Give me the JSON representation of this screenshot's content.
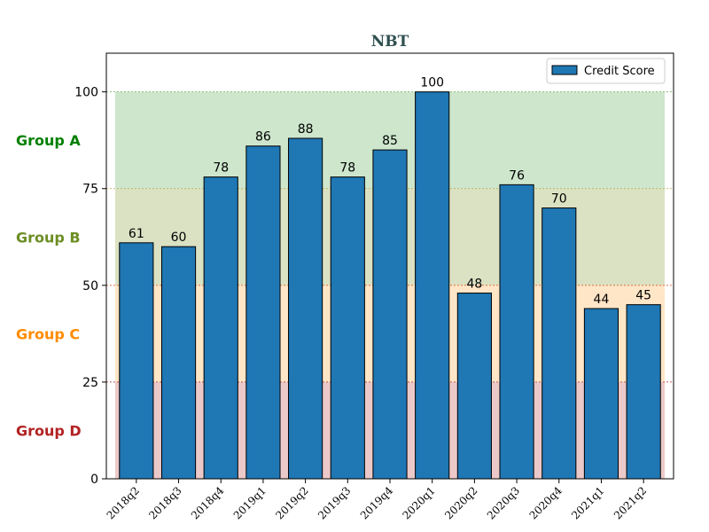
{
  "chart_data": {
    "type": "bar",
    "title": "NBT",
    "title_color": "#2f4f4f",
    "categories": [
      "2018q2",
      "2018q3",
      "2018q4",
      "2019q1",
      "2019q2",
      "2019q3",
      "2019q4",
      "2020q1",
      "2020q2",
      "2020q3",
      "2020q4",
      "2021q1",
      "2021q2"
    ],
    "series": [
      {
        "name": "Credit Score",
        "color": "#1f77b4",
        "values": [
          61,
          60,
          78,
          86,
          88,
          78,
          85,
          100,
          48,
          76,
          70,
          44,
          45
        ]
      }
    ],
    "xlabel": "",
    "ylabel": "",
    "ylim": [
      0,
      110
    ],
    "yticks": [
      0,
      25,
      50,
      75,
      100
    ],
    "legend_position": "top-right",
    "grid": false,
    "bands": [
      {
        "label": "Group A",
        "from": 75,
        "to": 100,
        "fill": "#cde6cc",
        "label_color": "#008000",
        "line_color": "#6aa84f"
      },
      {
        "label": "Group B",
        "from": 50,
        "to": 75,
        "fill": "#dbe2c3",
        "label_color": "#6b8e23",
        "line_color": "#b7a24a"
      },
      {
        "label": "Group C",
        "from": 25,
        "to": 50,
        "fill": "#ffe6c6",
        "label_color": "#ff8c00",
        "line_color": "#e06030"
      },
      {
        "label": "Group D",
        "from": 0,
        "to": 25,
        "fill": "#ecc9c9",
        "label_color": "#b22222",
        "line_color": "#b22222"
      }
    ]
  }
}
